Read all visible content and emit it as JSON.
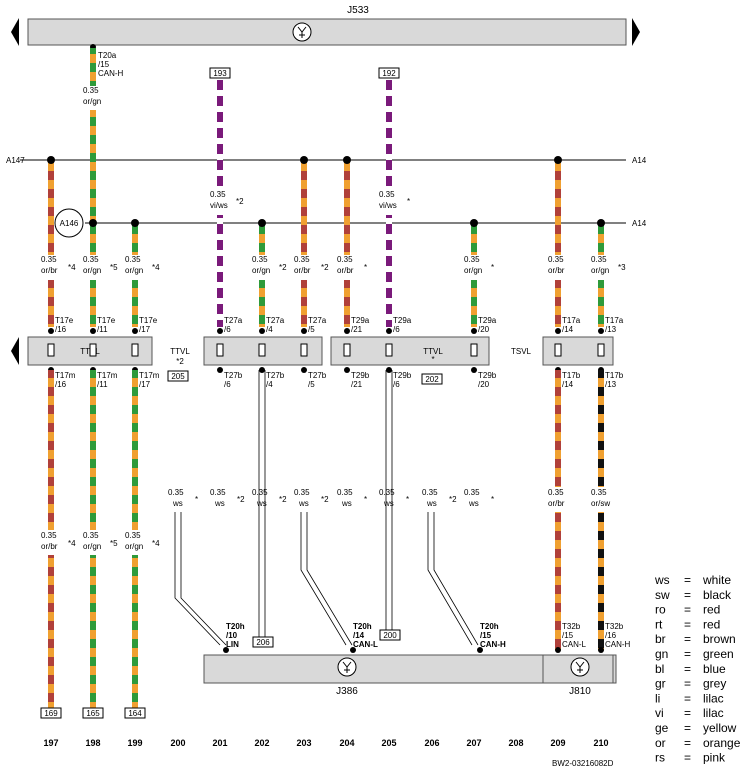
{
  "components": {
    "top": "J533",
    "bottom_mid": "J386",
    "bottom_right": "J810",
    "connector_circle": "A146"
  },
  "bus_labels": {
    "top_left": "A147",
    "top_right": "A14",
    "low_right": "A14"
  },
  "terminal_labels": {
    "ttvl_left": "TTVL",
    "ttvl_mid": "TTVL",
    "ttvl_mid_sub": "*2",
    "ttvl_right": "TTVL",
    "tsvl": "TSVL",
    "star": "*"
  },
  "refs": {
    "r193": "193",
    "r192": "192",
    "r205": "205",
    "r202": "202",
    "r206": "206",
    "r200": "200",
    "r169": "169",
    "r165": "165",
    "r164": "164"
  },
  "j533_pin": {
    "l1": "T20a",
    "l2": "/15",
    "l3": "CAN-H"
  },
  "wire_labels": {
    "w198_top": {
      "size": "0.35",
      "color": "or/gn"
    },
    "vi1": {
      "size": "0.35",
      "color": "vi/ws",
      "note": "*2"
    },
    "vi2": {
      "size": "0.35",
      "color": "vi/ws",
      "note": "*"
    },
    "mid": [
      {
        "size": "0.35",
        "color": "or/br",
        "note": "*4"
      },
      {
        "size": "0.35",
        "color": "or/gn",
        "note": "*5"
      },
      {
        "size": "0.35",
        "color": "or/gn",
        "note": "*4"
      },
      {
        "size": "0.35",
        "color": "or/gn",
        "note": "*2"
      },
      {
        "size": "0.35",
        "color": "or/br",
        "note": "*2"
      },
      {
        "size": "0.35",
        "color": "or/br",
        "note": "*"
      },
      {
        "size": "0.35",
        "color": "or/gn",
        "note": "*"
      },
      {
        "size": "0.35",
        "color": "or/br",
        "note": ""
      },
      {
        "size": "0.35",
        "color": "or/gn",
        "note": "*3"
      }
    ],
    "ws": [
      {
        "size": "0.35",
        "color": "ws",
        "note": "*"
      },
      {
        "size": "0.35",
        "color": "ws",
        "note": "*2"
      },
      {
        "size": "0.35",
        "color": "ws",
        "note": "*2"
      },
      {
        "size": "0.35",
        "color": "ws",
        "note": "*2"
      },
      {
        "size": "0.35",
        "color": "ws",
        "note": "*"
      },
      {
        "size": "0.35",
        "color": "ws",
        "note": "*"
      },
      {
        "size": "0.35",
        "color": "ws",
        "note": "*2"
      },
      {
        "size": "0.35",
        "color": "ws",
        "note": "*"
      }
    ],
    "low": [
      {
        "size": "0.35",
        "color": "or/br",
        "note": "*4"
      },
      {
        "size": "0.35",
        "color": "or/gn",
        "note": "*5"
      },
      {
        "size": "0.35",
        "color": "or/gn",
        "note": "*4"
      }
    ],
    "right_low": [
      {
        "size": "0.35",
        "color": "or/br"
      },
      {
        "size": "0.35",
        "color": "or/sw"
      }
    ]
  },
  "pins_top": [
    {
      "a": "T17e",
      "b": "/16"
    },
    {
      "a": "T17e",
      "b": "/11"
    },
    {
      "a": "T17e",
      "b": "/17"
    },
    {
      "a": "T27a",
      "b": "/6"
    },
    {
      "a": "T27a",
      "b": "/4"
    },
    {
      "a": "T27a",
      "b": "/5"
    },
    {
      "a": "T29a",
      "b": "/21"
    },
    {
      "a": "T29a",
      "b": "/6"
    },
    {
      "a": "T29a",
      "b": "/20"
    },
    {
      "a": "T17a",
      "b": "/14"
    },
    {
      "a": "T17a",
      "b": "/13"
    }
  ],
  "pins_bottom": [
    {
      "a": "T17m",
      "b": "/16"
    },
    {
      "a": "T17m",
      "b": "/11"
    },
    {
      "a": "T17m",
      "b": "/17"
    },
    {
      "a": "T27b",
      "b": "/6"
    },
    {
      "a": "T27b",
      "b": "/4"
    },
    {
      "a": "T27b",
      "b": "/5"
    },
    {
      "a": "T29b",
      "b": "/21"
    },
    {
      "a": "T29b",
      "b": "/6"
    },
    {
      "a": "T29b",
      "b": "/20"
    },
    {
      "a": "T17b",
      "b": "/14"
    },
    {
      "a": "T17b",
      "b": "/13"
    }
  ],
  "j386_pins": [
    {
      "a": "T20h",
      "b": "/10",
      "c": "LIN"
    },
    {
      "a": "T20h",
      "b": "/14",
      "c": "CAN-L"
    },
    {
      "a": "T20h",
      "b": "/15",
      "c": "CAN-H"
    }
  ],
  "j810_pins": [
    {
      "a": "T32b",
      "b": "/15",
      "c": "CAN-L"
    },
    {
      "a": "T32b",
      "b": "/16",
      "c": "CAN-H"
    }
  ],
  "columns": [
    "197",
    "198",
    "199",
    "200",
    "201",
    "202",
    "203",
    "204",
    "205",
    "206",
    "207",
    "208",
    "209",
    "210"
  ],
  "footer_code": "BW2-03216082D",
  "legend": [
    {
      "code": "ws",
      "eq": "=",
      "name": "white"
    },
    {
      "code": "sw",
      "eq": "=",
      "name": "black"
    },
    {
      "code": "ro",
      "eq": "=",
      "name": "red"
    },
    {
      "code": "rt",
      "eq": "=",
      "name": "red"
    },
    {
      "code": "br",
      "eq": "=",
      "name": "brown"
    },
    {
      "code": "gn",
      "eq": "=",
      "name": "green"
    },
    {
      "code": "bl",
      "eq": "=",
      "name": "blue"
    },
    {
      "code": "gr",
      "eq": "=",
      "name": "grey"
    },
    {
      "code": "li",
      "eq": "=",
      "name": "lilac"
    },
    {
      "code": "vi",
      "eq": "=",
      "name": "lilac"
    },
    {
      "code": "ge",
      "eq": "=",
      "name": "yellow"
    },
    {
      "code": "or",
      "eq": "=",
      "name": "orange"
    },
    {
      "code": "rs",
      "eq": "=",
      "name": "pink"
    }
  ],
  "wire_colors": {
    "orange": "#f0a030",
    "green": "#2e9a3a",
    "brown": "#b0403a",
    "violet": "#7a1a7a",
    "black": "#111111",
    "box": "#d9d9d9"
  }
}
